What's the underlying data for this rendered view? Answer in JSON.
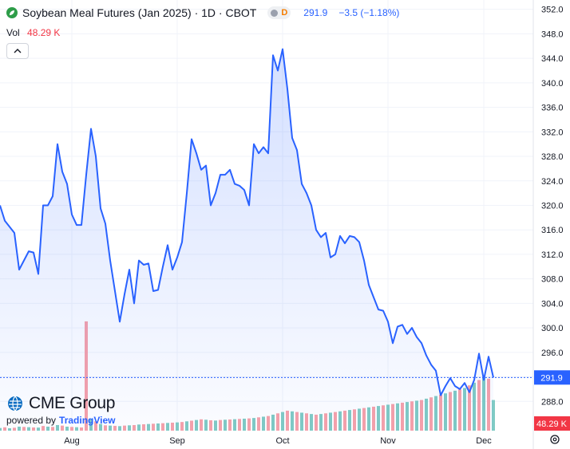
{
  "header": {
    "title": "Soybean Meal Futures (Jan 2025) · 1D · CBOT",
    "data_mode_letter": "D",
    "last_price": "291.9",
    "change": "−3.5 (−1.18%)",
    "volume_label": "Vol",
    "volume_value": "48.29 K"
  },
  "branding": {
    "cme_text": "CME Group",
    "powered_by": "powered by",
    "tradingview": "TradingView"
  },
  "colors": {
    "line": "#2962ff",
    "price_tag": "#2962ff",
    "volume_tag": "#f23645",
    "volume_up": "#80cbc4",
    "volume_down": "#f7a1a9"
  },
  "chart_data": {
    "type": "area",
    "title": "Soybean Meal Futures (Jan 2025) · 1D · CBOT",
    "xlabel": "",
    "ylabel": "",
    "x_tick_labels": [
      "Aug",
      "Sep",
      "Oct",
      "Nov",
      "Dec"
    ],
    "x_tick_index": [
      15,
      37,
      59,
      81,
      101
    ],
    "y_ticks": [
      288.0,
      292.0,
      296.0,
      300.0,
      304.0,
      308.0,
      312.0,
      316.0,
      320.0,
      324.0,
      328.0,
      332.0,
      336.0,
      340.0,
      344.0,
      348.0,
      352.0
    ],
    "y_tick_labels": [
      "288.0",
      "",
      "296.0",
      "300.0",
      "304.0",
      "308.0",
      "312.0",
      "316.0",
      "320.0",
      "324.0",
      "328.0",
      "332.0",
      "336.0",
      "340.0",
      "344.0",
      "348.0",
      "352.0"
    ],
    "ylim": [
      284.0,
      353.0
    ],
    "grid": true,
    "last_value": 291.9,
    "last_value_label": "291.9",
    "last_volume_label": "48.29 K",
    "series": [
      {
        "values": [
          320.0,
          317.5,
          316.5,
          315.5,
          309.5,
          311.0,
          312.5,
          312.3,
          308.8,
          320.0,
          320.0,
          321.5,
          330.0,
          325.5,
          323.5,
          318.5,
          316.8,
          316.8,
          325.0,
          332.5,
          328.0,
          319.5,
          317.0,
          311.0,
          306.0,
          301.0,
          305.5,
          309.5,
          304.0,
          311.0,
          310.3,
          310.5,
          306.0,
          306.2,
          310.0,
          313.5,
          309.5,
          311.5,
          314.0,
          322.0,
          330.8,
          328.5,
          325.8,
          326.5,
          320.0,
          322.0,
          325.0,
          325.0,
          325.8,
          323.5,
          323.2,
          322.5,
          320.0,
          330.0,
          328.5,
          329.5,
          328.5,
          344.5,
          342.0,
          345.5,
          339.0,
          331.0,
          329.0,
          323.5,
          322.0,
          320.0,
          316.0,
          314.8,
          315.5,
          311.5,
          312.0,
          315.0,
          313.8,
          315.0,
          314.8,
          314.0,
          311.0,
          307.0,
          305.0,
          303.0,
          302.8,
          301.0,
          297.5,
          300.2,
          300.5,
          299.0,
          300.0,
          298.5,
          297.5,
          295.5,
          294.0,
          293.0,
          289.0,
          290.5,
          291.8,
          290.5,
          290.0,
          291.0,
          289.5,
          291.5,
          295.8,
          291.5,
          295.3,
          291.9
        ]
      }
    ],
    "volume": [
      200,
      250,
      180,
      220,
      300,
      280,
      260,
      240,
      230,
      350,
      300,
      280,
      420,
      380,
      300,
      280,
      260,
      240,
      8200,
      900,
      700,
      500,
      400,
      380,
      360,
      340,
      380,
      400,
      420,
      460,
      480,
      500,
      520,
      540,
      560,
      580,
      600,
      620,
      650,
      700,
      750,
      800,
      850,
      820,
      780,
      760,
      800,
      820,
      840,
      860,
      880,
      900,
      920,
      950,
      1000,
      1050,
      1100,
      1200,
      1300,
      1400,
      1500,
      1450,
      1400,
      1350,
      1300,
      1250,
      1200,
      1250,
      1300,
      1350,
      1400,
      1450,
      1500,
      1550,
      1600,
      1650,
      1700,
      1750,
      1800,
      1850,
      1900,
      1950,
      2000,
      2050,
      2100,
      2150,
      2200,
      2250,
      2300,
      2400,
      2500,
      2600,
      2700,
      2800,
      2900,
      3000,
      3100,
      3200,
      3400,
      3600,
      3800,
      4000,
      3900,
      2300
    ],
    "volume_up": [
      true,
      false,
      true,
      false,
      true,
      false,
      true,
      false,
      true,
      false,
      true,
      false,
      true,
      false,
      true,
      false,
      true,
      false,
      false,
      true,
      false,
      true,
      false,
      true,
      false,
      true,
      false,
      true,
      false,
      true,
      false,
      true,
      false,
      true,
      false,
      true,
      false,
      true,
      false,
      true,
      false,
      true,
      false,
      true,
      false,
      true,
      false,
      true,
      false,
      true,
      false,
      true,
      false,
      true,
      false,
      true,
      false,
      true,
      false,
      true,
      false,
      true,
      false,
      true,
      false,
      true,
      false,
      true,
      false,
      true,
      false,
      true,
      false,
      true,
      false,
      true,
      false,
      true,
      false,
      true,
      false,
      true,
      false,
      true,
      false,
      true,
      false,
      true,
      false,
      true,
      false,
      true,
      false,
      true,
      false,
      true,
      false,
      true,
      false,
      true,
      false,
      true,
      false,
      true,
      false,
      false
    ]
  }
}
